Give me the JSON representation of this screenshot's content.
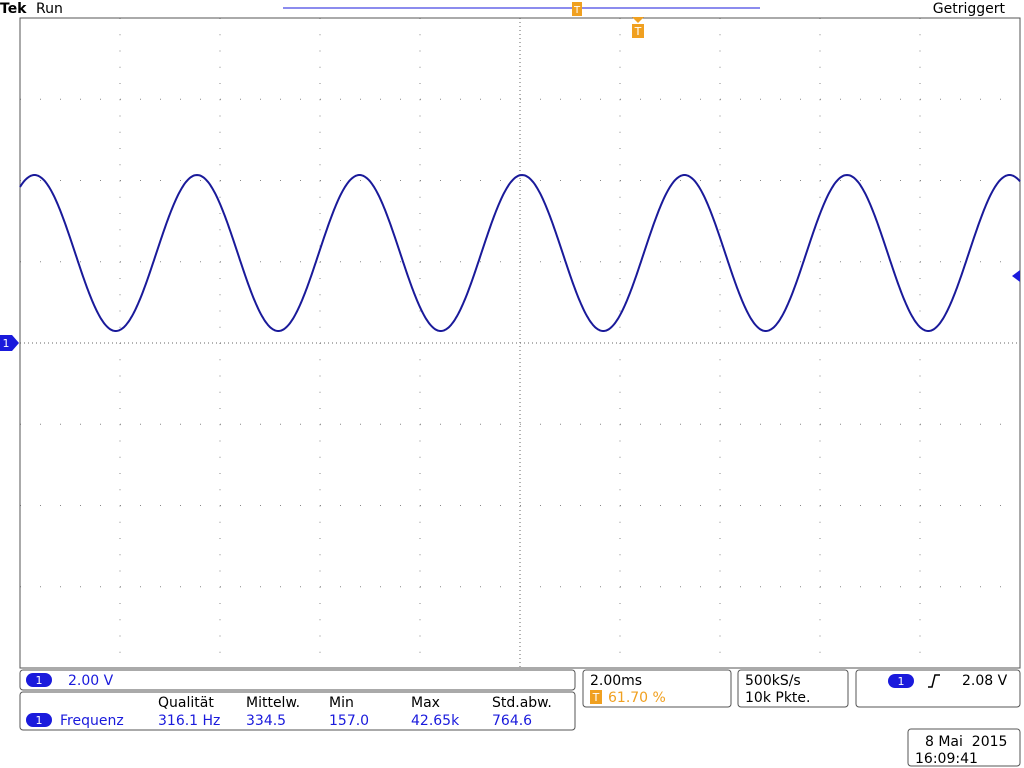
{
  "status": {
    "brand": "Tek",
    "state": "Run",
    "trigger_state": "Getriggert"
  },
  "channel": {
    "number": "1",
    "scale": "2.00 V"
  },
  "trigger_marker": "T",
  "measurement": {
    "headers": [
      "Qualität",
      "Mittelw.",
      "Min",
      "Max",
      "Std.abw."
    ],
    "name": "Frequenz",
    "values": [
      "316.1 Hz",
      "334.5",
      "157.0",
      "42.65k",
      "764.6"
    ]
  },
  "timebase": {
    "scale": "2.00ms",
    "trigger_position": "61.70 %"
  },
  "acquisition": {
    "rate": "500kS/s",
    "length": "10k Pkte."
  },
  "trigger": {
    "level": "2.08 V"
  },
  "datetime": {
    "date": "8 Mai  2015",
    "time": "16:09:41"
  }
}
